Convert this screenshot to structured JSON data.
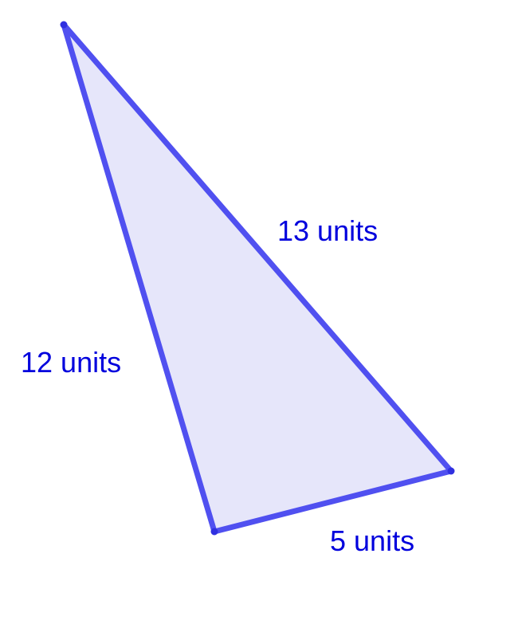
{
  "diagram": {
    "shape": "right-triangle",
    "colors": {
      "stroke": "#5050f0",
      "fill": "#e6e6fa",
      "label": "#0000dd"
    },
    "labels": {
      "hypotenuse": "13 units",
      "left_side": "12 units",
      "bottom_side": "5 units"
    },
    "side_lengths": {
      "hypotenuse": 13,
      "left_side": 12,
      "bottom_side": 5
    }
  }
}
